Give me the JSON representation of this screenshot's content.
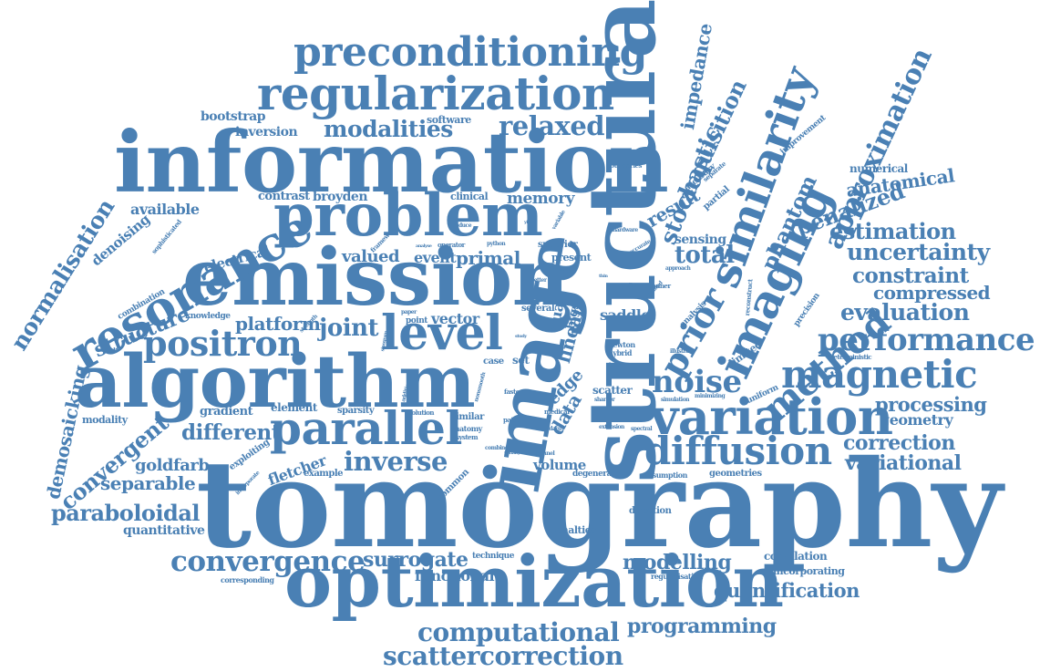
{
  "colors": {
    "word": "#4a80b4",
    "background": "#ffffff"
  },
  "words": [
    "tomography",
    "structural",
    "information",
    "emission",
    "algorithm",
    "optimization",
    "image",
    "problem",
    "resonance",
    "regularization",
    "preconditioning",
    "imaging",
    "similarity",
    "variation",
    "parallel",
    "level",
    "diffusion",
    "magnetic",
    "performance",
    "positron",
    "method",
    "prior",
    "approximation",
    "normalisation",
    "demosaicking",
    "convergence",
    "computational",
    "scattercorrection",
    "paraboloidal",
    "relaxed",
    "modalities",
    "inverse",
    "convergent",
    "stochastic",
    "acquisition",
    "impedance",
    "phantom",
    "uncertainty",
    "constraint",
    "compressed",
    "evaluation",
    "estimation",
    "penalized",
    "anatomical",
    "numerical",
    "processing",
    "geometry",
    "correction",
    "variational",
    "modelling",
    "quantification",
    "programming",
    "surrogate",
    "functional",
    "different",
    "separable",
    "goldfarb",
    "quantitative",
    "structure",
    "joint",
    "platform",
    "vector",
    "primal",
    "valued",
    "event",
    "noise",
    "total",
    "result",
    "sensing",
    "linear",
    "data",
    "edge",
    "volume",
    "saddle",
    "scatter",
    "denoising",
    "available",
    "contrast",
    "broyden",
    "memory",
    "electrical",
    "bootstrap",
    "inversion",
    "software",
    "clinical",
    "fletcher",
    "gradient",
    "element",
    "modality",
    "sparsity",
    "exploiting",
    "example",
    "common",
    "direction",
    "penalties",
    "technique",
    "corresponding",
    "correlation",
    "incorporating",
    "regularisation",
    "geometries",
    "assumption",
    "degenerate",
    "knowledge",
    "combination",
    "sophisticated",
    "improvement",
    "boundaries",
    "accuracy",
    "partial",
    "limited",
    "analysis",
    "uniform",
    "precision",
    "reconstruct",
    "deterministic",
    "hybrid",
    "newton",
    "location",
    "superior",
    "present",
    "several",
    "point",
    "case",
    "set",
    "similar",
    "anatomy",
    "system",
    "patient",
    "faster",
    "medical",
    "solution",
    "operator",
    "framework",
    "python",
    "feasibility",
    "hardware",
    "approach",
    "separate",
    "illustrate",
    "simulation",
    "minimizing",
    "sharper",
    "spectral",
    "extension",
    "standard",
    "channel",
    "penalty",
    "combine",
    "strength",
    "paper",
    "dual",
    "bfgs",
    "guided",
    "studies",
    "scanner",
    "accurate",
    "better",
    "reduce",
    "variable",
    "analyse",
    "incorporate",
    "additional",
    "nonsmooth",
    "statistical",
    "yield",
    "model",
    "study",
    "thin",
    "sinogram"
  ]
}
